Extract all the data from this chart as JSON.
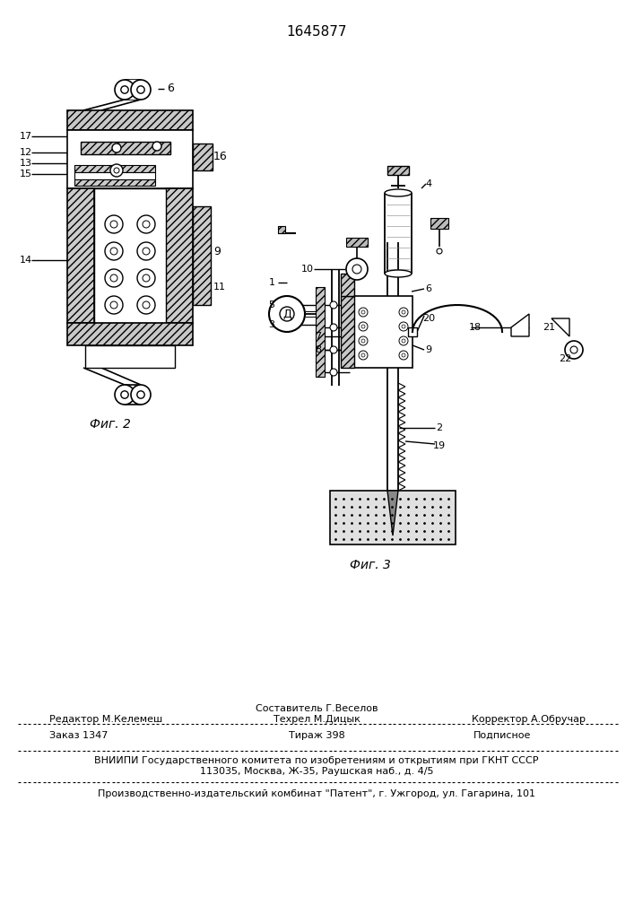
{
  "patent_number": "1645877",
  "bg_color": "#ffffff",
  "fig_width": 7.07,
  "fig_height": 10.0,
  "footer": {
    "sestavitel": "Составитель Г.Веселов",
    "redaktor": "Редактор М.Келемеш",
    "tehrel": "Техрел М.Дицык",
    "korrektor": "Корректор А.Обручар",
    "zakaz": "Заказ 1347",
    "tirazh": "Тираж 398",
    "podpisnoe": "Подписное",
    "vniipи": "ВНИИПИ Государственного комитета по изобретениям и открытиям при ГКНТ СССР",
    "address": "113035, Москва, Ж-35, Раушская наб., д. 4/5",
    "patent_firm": "Производственно-издательский комбинат \"Патент\", г. Ужгород, ул. Гагарина, 101"
  },
  "fig2_label": "Фиг. 2",
  "fig3_label": "Фиг. 3"
}
